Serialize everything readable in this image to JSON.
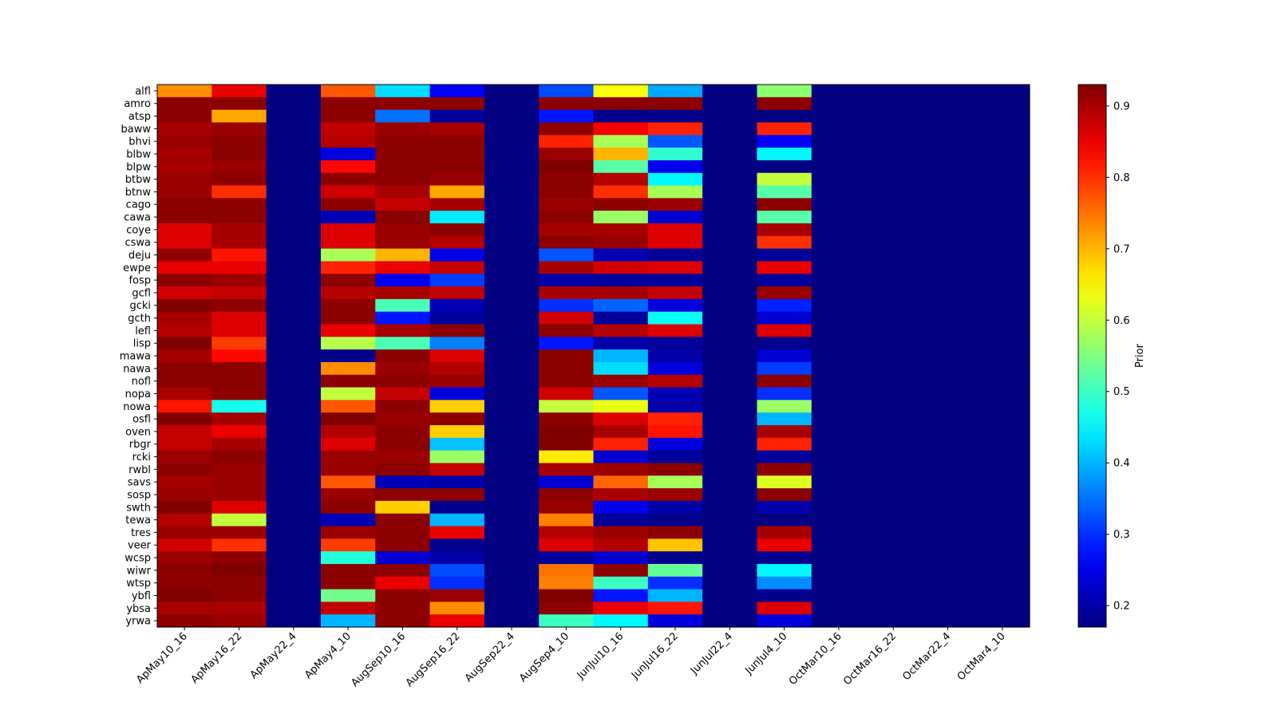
{
  "chart_data": {
    "type": "heatmap",
    "title": "",
    "xlabel": "",
    "ylabel": "",
    "colorbar_label": "Prior",
    "colormap": "jet",
    "value_range": [
      0.17,
      0.93
    ],
    "colorbar_ticks": [
      0.2,
      0.3,
      0.4,
      0.5,
      0.6,
      0.7,
      0.8,
      0.9
    ],
    "columns": [
      "ApMay10_16",
      "ApMay16_22",
      "ApMay22_4",
      "ApMay4_10",
      "AugSep10_16",
      "AugSep16_22",
      "AugSep22_4",
      "AugSep4_10",
      "JunJul10_16",
      "JunJul16_22",
      "JunJul22_4",
      "JunJul4_10",
      "OctMar10_16",
      "OctMar16_22",
      "OctMar22_4",
      "OctMar4_10"
    ],
    "rows": [
      "alfl",
      "amro",
      "atsp",
      "baww",
      "bhvi",
      "blbw",
      "blpw",
      "btbw",
      "btnw",
      "cago",
      "cawa",
      "coye",
      "cswa",
      "deju",
      "ewpe",
      "fosp",
      "gcfl",
      "gcki",
      "gcth",
      "lefl",
      "lisp",
      "mawa",
      "nawa",
      "nofl",
      "nopa",
      "nowa",
      "osfl",
      "oven",
      "rbgr",
      "rcki",
      "rwbl",
      "savs",
      "sosp",
      "swth",
      "tewa",
      "tres",
      "veer",
      "wcsp",
      "wiwr",
      "wtsp",
      "ybfl",
      "ybsa",
      "yrwa"
    ],
    "values": [
      [
        0.73,
        0.85,
        0.17,
        0.77,
        0.43,
        0.26,
        0.17,
        0.32,
        0.64,
        0.39,
        0.17,
        0.56,
        0.17,
        0.17,
        0.17,
        0.17
      ],
      [
        0.92,
        0.92,
        0.17,
        0.92,
        0.92,
        0.92,
        0.17,
        0.92,
        0.92,
        0.92,
        0.17,
        0.92,
        0.17,
        0.17,
        0.17,
        0.17
      ],
      [
        0.92,
        0.71,
        0.17,
        0.92,
        0.35,
        0.19,
        0.17,
        0.28,
        0.18,
        0.18,
        0.17,
        0.17,
        0.17,
        0.17,
        0.17,
        0.17
      ],
      [
        0.9,
        0.91,
        0.17,
        0.88,
        0.91,
        0.9,
        0.17,
        0.92,
        0.84,
        0.81,
        0.17,
        0.81,
        0.17,
        0.17,
        0.17,
        0.17
      ],
      [
        0.91,
        0.92,
        0.17,
        0.89,
        0.92,
        0.92,
        0.17,
        0.81,
        0.58,
        0.33,
        0.17,
        0.26,
        0.17,
        0.17,
        0.17,
        0.17
      ],
      [
        0.9,
        0.92,
        0.17,
        0.24,
        0.92,
        0.92,
        0.17,
        0.91,
        0.7,
        0.49,
        0.17,
        0.45,
        0.17,
        0.17,
        0.17,
        0.17
      ],
      [
        0.9,
        0.91,
        0.17,
        0.83,
        0.92,
        0.92,
        0.17,
        0.93,
        0.52,
        0.25,
        0.17,
        0.17,
        0.17,
        0.17,
        0.17,
        0.17
      ],
      [
        0.91,
        0.92,
        0.17,
        0.92,
        0.92,
        0.91,
        0.17,
        0.92,
        0.89,
        0.45,
        0.17,
        0.6,
        0.17,
        0.17,
        0.17,
        0.17
      ],
      [
        0.91,
        0.8,
        0.17,
        0.87,
        0.9,
        0.71,
        0.17,
        0.92,
        0.8,
        0.58,
        0.17,
        0.52,
        0.17,
        0.17,
        0.17,
        0.17
      ],
      [
        0.92,
        0.92,
        0.17,
        0.92,
        0.88,
        0.9,
        0.17,
        0.91,
        0.92,
        0.91,
        0.17,
        0.92,
        0.17,
        0.17,
        0.17,
        0.17
      ],
      [
        0.92,
        0.92,
        0.17,
        0.21,
        0.92,
        0.44,
        0.17,
        0.92,
        0.57,
        0.23,
        0.17,
        0.52,
        0.17,
        0.17,
        0.17,
        0.17
      ],
      [
        0.86,
        0.9,
        0.17,
        0.86,
        0.91,
        0.92,
        0.17,
        0.9,
        0.9,
        0.86,
        0.17,
        0.9,
        0.17,
        0.17,
        0.17,
        0.17
      ],
      [
        0.86,
        0.9,
        0.17,
        0.86,
        0.91,
        0.89,
        0.17,
        0.92,
        0.91,
        0.86,
        0.17,
        0.8,
        0.17,
        0.17,
        0.17,
        0.17
      ],
      [
        0.92,
        0.82,
        0.17,
        0.58,
        0.7,
        0.25,
        0.17,
        0.33,
        0.21,
        0.19,
        0.17,
        0.19,
        0.17,
        0.17,
        0.17,
        0.17
      ],
      [
        0.85,
        0.85,
        0.17,
        0.81,
        0.85,
        0.88,
        0.17,
        0.9,
        0.87,
        0.86,
        0.17,
        0.85,
        0.17,
        0.17,
        0.17,
        0.17
      ],
      [
        0.92,
        0.91,
        0.17,
        0.92,
        0.25,
        0.31,
        0.17,
        0.2,
        0.19,
        0.19,
        0.17,
        0.19,
        0.17,
        0.17,
        0.17,
        0.17
      ],
      [
        0.87,
        0.88,
        0.17,
        0.89,
        0.9,
        0.88,
        0.17,
        0.9,
        0.9,
        0.88,
        0.17,
        0.91,
        0.17,
        0.17,
        0.17,
        0.17
      ],
      [
        0.93,
        0.92,
        0.17,
        0.92,
        0.51,
        0.21,
        0.17,
        0.3,
        0.34,
        0.24,
        0.17,
        0.29,
        0.17,
        0.17,
        0.17,
        0.17
      ],
      [
        0.9,
        0.86,
        0.17,
        0.92,
        0.28,
        0.19,
        0.17,
        0.87,
        0.19,
        0.46,
        0.17,
        0.23,
        0.17,
        0.17,
        0.17,
        0.17
      ],
      [
        0.89,
        0.86,
        0.17,
        0.85,
        0.9,
        0.92,
        0.17,
        0.92,
        0.89,
        0.86,
        0.17,
        0.86,
        0.17,
        0.17,
        0.17,
        0.17
      ],
      [
        0.93,
        0.79,
        0.17,
        0.59,
        0.51,
        0.36,
        0.17,
        0.28,
        0.2,
        0.19,
        0.17,
        0.18,
        0.17,
        0.17,
        0.17,
        0.17
      ],
      [
        0.9,
        0.83,
        0.17,
        0.18,
        0.92,
        0.86,
        0.17,
        0.92,
        0.4,
        0.2,
        0.17,
        0.23,
        0.17,
        0.17,
        0.17,
        0.17
      ],
      [
        0.92,
        0.92,
        0.17,
        0.73,
        0.91,
        0.89,
        0.17,
        0.92,
        0.43,
        0.24,
        0.17,
        0.31,
        0.17,
        0.17,
        0.17,
        0.17
      ],
      [
        0.92,
        0.92,
        0.17,
        0.92,
        0.92,
        0.91,
        0.17,
        0.92,
        0.91,
        0.89,
        0.17,
        0.92,
        0.17,
        0.17,
        0.17,
        0.17
      ],
      [
        0.9,
        0.92,
        0.17,
        0.6,
        0.88,
        0.24,
        0.17,
        0.87,
        0.33,
        0.21,
        0.17,
        0.3,
        0.17,
        0.17,
        0.17,
        0.17
      ],
      [
        0.82,
        0.47,
        0.17,
        0.77,
        0.92,
        0.68,
        0.17,
        0.6,
        0.63,
        0.2,
        0.17,
        0.57,
        0.17,
        0.17,
        0.17,
        0.17
      ],
      [
        0.93,
        0.9,
        0.17,
        0.93,
        0.91,
        0.92,
        0.17,
        0.92,
        0.86,
        0.81,
        0.17,
        0.4,
        0.17,
        0.17,
        0.17,
        0.17
      ],
      [
        0.88,
        0.85,
        0.17,
        0.89,
        0.92,
        0.68,
        0.17,
        0.93,
        0.9,
        0.82,
        0.17,
        0.9,
        0.17,
        0.17,
        0.17,
        0.17
      ],
      [
        0.88,
        0.9,
        0.17,
        0.86,
        0.92,
        0.41,
        0.17,
        0.93,
        0.81,
        0.24,
        0.17,
        0.81,
        0.17,
        0.17,
        0.17,
        0.17
      ],
      [
        0.91,
        0.92,
        0.17,
        0.91,
        0.91,
        0.57,
        0.17,
        0.66,
        0.23,
        0.19,
        0.17,
        0.19,
        0.17,
        0.17,
        0.17,
        0.17
      ],
      [
        0.92,
        0.91,
        0.17,
        0.91,
        0.92,
        0.88,
        0.17,
        0.9,
        0.91,
        0.92,
        0.17,
        0.92,
        0.17,
        0.17,
        0.17,
        0.17
      ],
      [
        0.9,
        0.91,
        0.17,
        0.77,
        0.21,
        0.2,
        0.17,
        0.23,
        0.76,
        0.58,
        0.17,
        0.62,
        0.17,
        0.17,
        0.17,
        0.17
      ],
      [
        0.91,
        0.91,
        0.17,
        0.91,
        0.92,
        0.92,
        0.17,
        0.92,
        0.9,
        0.91,
        0.17,
        0.92,
        0.17,
        0.17,
        0.17,
        0.17
      ],
      [
        0.93,
        0.86,
        0.17,
        0.92,
        0.68,
        0.18,
        0.17,
        0.91,
        0.25,
        0.2,
        0.17,
        0.2,
        0.17,
        0.17,
        0.17,
        0.17
      ],
      [
        0.89,
        0.6,
        0.17,
        0.21,
        0.92,
        0.4,
        0.17,
        0.74,
        0.19,
        0.18,
        0.17,
        0.17,
        0.17,
        0.17,
        0.17,
        0.17
      ],
      [
        0.91,
        0.91,
        0.17,
        0.91,
        0.92,
        0.85,
        0.17,
        0.89,
        0.91,
        0.92,
        0.17,
        0.9,
        0.17,
        0.17,
        0.17,
        0.17
      ],
      [
        0.87,
        0.8,
        0.17,
        0.79,
        0.92,
        0.18,
        0.17,
        0.86,
        0.89,
        0.69,
        0.17,
        0.85,
        0.17,
        0.17,
        0.17,
        0.17
      ],
      [
        0.91,
        0.92,
        0.17,
        0.48,
        0.23,
        0.2,
        0.17,
        0.19,
        0.23,
        0.18,
        0.17,
        0.18,
        0.17,
        0.17,
        0.17,
        0.17
      ],
      [
        0.92,
        0.93,
        0.17,
        0.92,
        0.92,
        0.32,
        0.17,
        0.75,
        0.92,
        0.53,
        0.17,
        0.45,
        0.17,
        0.17,
        0.17,
        0.17
      ],
      [
        0.92,
        0.92,
        0.17,
        0.92,
        0.85,
        0.3,
        0.17,
        0.74,
        0.5,
        0.3,
        0.17,
        0.37,
        0.17,
        0.17,
        0.17,
        0.17
      ],
      [
        0.93,
        0.92,
        0.17,
        0.54,
        0.92,
        0.91,
        0.17,
        0.93,
        0.28,
        0.4,
        0.17,
        0.18,
        0.17,
        0.17,
        0.17,
        0.17
      ],
      [
        0.9,
        0.9,
        0.17,
        0.88,
        0.92,
        0.73,
        0.17,
        0.92,
        0.85,
        0.82,
        0.17,
        0.86,
        0.17,
        0.17,
        0.17,
        0.17
      ],
      [
        0.92,
        0.91,
        0.17,
        0.4,
        0.92,
        0.85,
        0.17,
        0.5,
        0.45,
        0.24,
        0.17,
        0.24,
        0.17,
        0.17,
        0.17,
        0.17
      ]
    ]
  }
}
